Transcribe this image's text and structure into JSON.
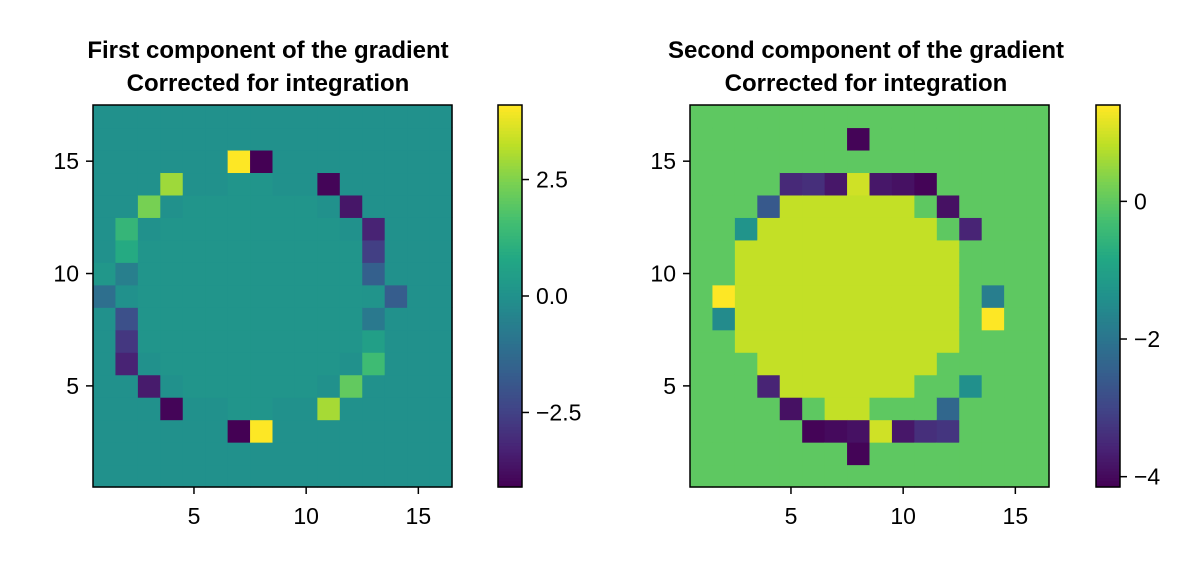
{
  "chart_data": [
    {
      "type": "heatmap",
      "title": "First component of the gradient",
      "subtitle": "Corrected for integration",
      "xlabel": "",
      "ylabel": "",
      "xlim": [
        0.5,
        16.5
      ],
      "ylim": [
        0.5,
        17.5
      ],
      "xticks": [
        5,
        10,
        15
      ],
      "yticks": [
        5,
        10,
        15
      ],
      "xtick_labels": [
        "5",
        "10",
        "15"
      ],
      "ytick_labels": [
        "5",
        "10",
        "15"
      ],
      "colormap": "viridis",
      "colorbar_range": [
        -4.1,
        4.1
      ],
      "colorbar_ticks": [
        -2.5,
        0.0,
        2.5
      ],
      "colorbar_tick_labels": [
        "−2.5",
        "0.0",
        "2.5"
      ],
      "grid": false,
      "background_value": 0.0,
      "interior_value": 0.15,
      "cells": [
        {
          "x": 7,
          "y": 15,
          "v": 4.1
        },
        {
          "x": 8,
          "y": 15,
          "v": -4.1
        },
        {
          "x": 4,
          "y": 14,
          "v": 2.9
        },
        {
          "x": 11,
          "y": 14,
          "v": -4.0
        },
        {
          "x": 3,
          "y": 13,
          "v": 2.4
        },
        {
          "x": 12,
          "y": 13,
          "v": -3.6
        },
        {
          "x": 2,
          "y": 12,
          "v": 1.3
        },
        {
          "x": 13,
          "y": 12,
          "v": -3.3
        },
        {
          "x": 2,
          "y": 11,
          "v": 0.9
        },
        {
          "x": 13,
          "y": 11,
          "v": -2.6
        },
        {
          "x": 1,
          "y": 10,
          "v": 0.2
        },
        {
          "x": 2,
          "y": 10,
          "v": -0.6
        },
        {
          "x": 13,
          "y": 10,
          "v": -1.6
        },
        {
          "x": 1,
          "y": 9,
          "v": -1.1
        },
        {
          "x": 13,
          "y": 9,
          "v": 0.1
        },
        {
          "x": 14,
          "y": 9,
          "v": -1.7
        },
        {
          "x": 2,
          "y": 8,
          "v": -2.1
        },
        {
          "x": 13,
          "y": 8,
          "v": -0.8
        },
        {
          "x": 2,
          "y": 7,
          "v": -2.8
        },
        {
          "x": 13,
          "y": 7,
          "v": 0.5
        },
        {
          "x": 2,
          "y": 6,
          "v": -3.3
        },
        {
          "x": 13,
          "y": 6,
          "v": 1.5
        },
        {
          "x": 3,
          "y": 5,
          "v": -3.5
        },
        {
          "x": 12,
          "y": 5,
          "v": 2.1
        },
        {
          "x": 4,
          "y": 4,
          "v": -4.0
        },
        {
          "x": 11,
          "y": 4,
          "v": 3.0
        },
        {
          "x": 7,
          "y": 3,
          "v": -4.1
        },
        {
          "x": 8,
          "y": 3,
          "v": 4.1
        }
      ]
    },
    {
      "type": "heatmap",
      "title": "Second component of the gradient",
      "subtitle": "Corrected for integration",
      "xlabel": "",
      "ylabel": "",
      "xlim": [
        0.5,
        16.5
      ],
      "ylim": [
        0.5,
        17.5
      ],
      "xticks": [
        5,
        10,
        15
      ],
      "yticks": [
        5,
        10,
        15
      ],
      "xtick_labels": [
        "5",
        "10",
        "15"
      ],
      "ytick_labels": [
        "5",
        "10",
        "15"
      ],
      "colormap": "viridis",
      "colorbar_range": [
        -4.15,
        1.4
      ],
      "colorbar_ticks": [
        -4,
        -2,
        0
      ],
      "colorbar_tick_labels": [
        "−4",
        "−2",
        "0"
      ],
      "grid": false,
      "background_value": 0.0,
      "interior_value": 0.9,
      "cells": [
        {
          "x": 8,
          "y": 16,
          "v": -4.1
        },
        {
          "x": 5,
          "y": 14,
          "v": -3.5
        },
        {
          "x": 6,
          "y": 14,
          "v": -3.4
        },
        {
          "x": 7,
          "y": 14,
          "v": -3.8
        },
        {
          "x": 8,
          "y": 14,
          "v": 1.0
        },
        {
          "x": 9,
          "y": 14,
          "v": -3.8
        },
        {
          "x": 10,
          "y": 14,
          "v": -3.9
        },
        {
          "x": 11,
          "y": 14,
          "v": -4.1
        },
        {
          "x": 4,
          "y": 13,
          "v": -2.6
        },
        {
          "x": 12,
          "y": 13,
          "v": -3.9
        },
        {
          "x": 3,
          "y": 12,
          "v": -1.3
        },
        {
          "x": 13,
          "y": 12,
          "v": -3.6
        },
        {
          "x": 2,
          "y": 9,
          "v": 1.4
        },
        {
          "x": 14,
          "y": 9,
          "v": -1.8
        },
        {
          "x": 2,
          "y": 8,
          "v": -1.5
        },
        {
          "x": 14,
          "y": 8,
          "v": 1.4
        },
        {
          "x": 4,
          "y": 5,
          "v": -3.6
        },
        {
          "x": 13,
          "y": 5,
          "v": -1.4
        },
        {
          "x": 5,
          "y": 4,
          "v": -3.9
        },
        {
          "x": 12,
          "y": 4,
          "v": -2.3
        },
        {
          "x": 6,
          "y": 3,
          "v": -4.1
        },
        {
          "x": 7,
          "y": 3,
          "v": -4.0
        },
        {
          "x": 8,
          "y": 3,
          "v": -3.9
        },
        {
          "x": 9,
          "y": 3,
          "v": 1.0
        },
        {
          "x": 10,
          "y": 3,
          "v": -3.8
        },
        {
          "x": 11,
          "y": 3,
          "v": -3.4
        },
        {
          "x": 12,
          "y": 3,
          "v": -3.3
        },
        {
          "x": 8,
          "y": 2,
          "v": -4.1
        }
      ]
    }
  ]
}
